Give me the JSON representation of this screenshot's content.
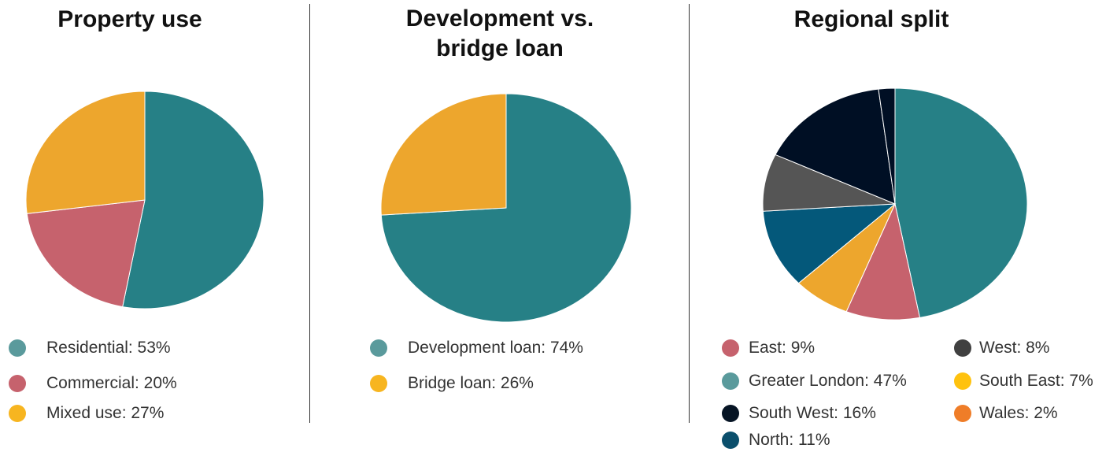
{
  "chart_data": [
    {
      "type": "pie",
      "title": "Property use",
      "slices": [
        {
          "label": "Residential",
          "value": 53,
          "color": "#268086",
          "legend_color": "#5a9a9c"
        },
        {
          "label": "Commercial",
          "value": 20,
          "color": "#c6626d",
          "legend_color": "#c6626d"
        },
        {
          "label": "Mixed use",
          "value": 27,
          "color": "#eda62d",
          "legend_color": "#f7b520"
        }
      ],
      "legend": [
        "Residential: 53%",
        "Commercial: 20%",
        "Mixed use: 27%"
      ],
      "legend_placement": "bottom"
    },
    {
      "type": "pie",
      "title_lines": [
        "Development vs.",
        "bridge loan"
      ],
      "slices": [
        {
          "label": "Development loan",
          "value": 74,
          "color": "#268086",
          "legend_color": "#5a9a9c"
        },
        {
          "label": "Bridge loan",
          "value": 26,
          "color": "#eda62d",
          "legend_color": "#f7b520"
        }
      ],
      "legend": [
        "Development loan: 74%",
        "Bridge loan: 26%"
      ],
      "legend_placement": "bottom"
    },
    {
      "type": "pie",
      "title": "Regional split",
      "slices": [
        {
          "label": "Greater London",
          "value": 47,
          "color": "#268086",
          "legend_color": "#5a9a9c"
        },
        {
          "label": "East",
          "value": 9,
          "color": "#c6626d",
          "legend_color": "#c6626d"
        },
        {
          "label": "South East",
          "value": 7,
          "color": "#eda62d",
          "legend_color": "#ffc20e"
        },
        {
          "label": "North",
          "value": 11,
          "color": "#04587a",
          "legend_color": "#0b4f6c"
        },
        {
          "label": "West",
          "value": 8,
          "color": "#555555",
          "legend_color": "#404040"
        },
        {
          "label": "South West",
          "value": 16,
          "color": "#000f24",
          "legend_color": "#061424"
        },
        {
          "label": "Wales",
          "value": 2,
          "color": "#000f24",
          "legend_color": "#ef7d28"
        }
      ],
      "legend": [
        {
          "text": "East: 9%",
          "color": "#c6626d"
        },
        {
          "text": "Greater London: 47%",
          "color": "#5a9a9c"
        },
        {
          "text": "South West: 16%",
          "color": "#061424"
        },
        {
          "text": "North: 11%",
          "color": "#0b4f6c"
        },
        {
          "text": "West: 8%",
          "color": "#404040"
        },
        {
          "text": "South East: 7%",
          "color": "#ffc20e"
        },
        {
          "text": "Wales: 2%",
          "color": "#ef7d28"
        }
      ],
      "legend_placement": "bottom"
    }
  ]
}
